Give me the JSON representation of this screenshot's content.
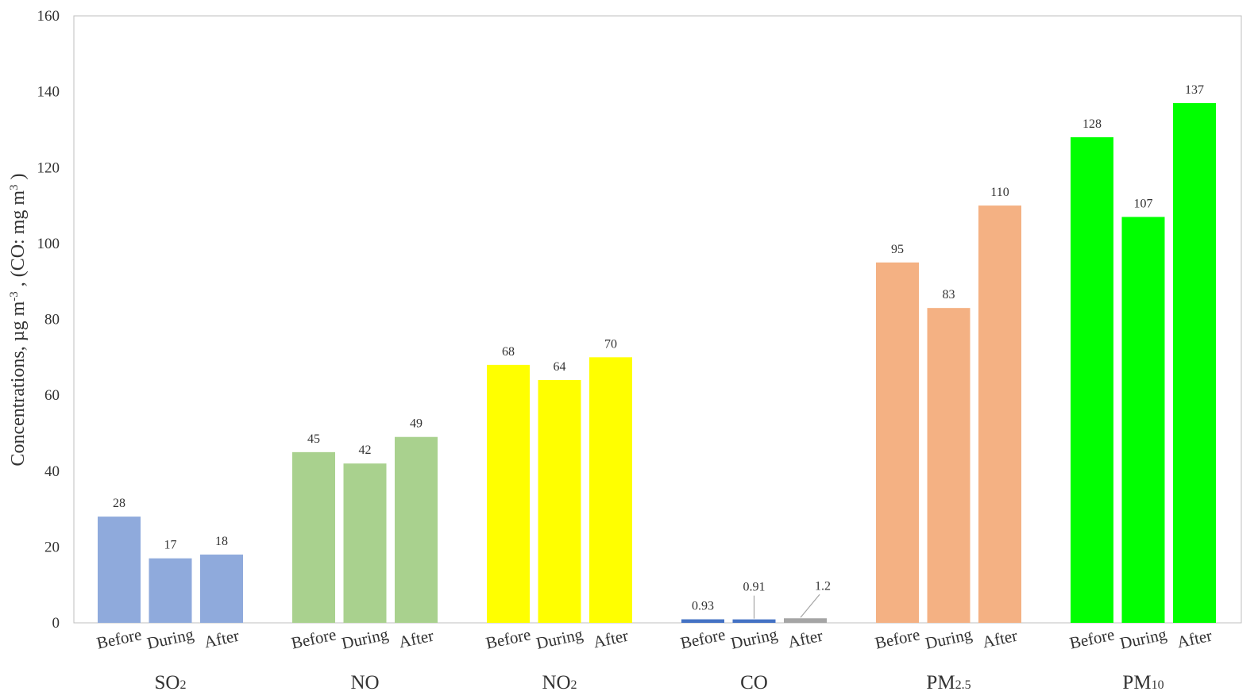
{
  "chart_data": {
    "type": "bar",
    "ylabel": {
      "parts": [
        {
          "text": "Concentrations,  µg m",
          "style": "normal"
        },
        {
          "text": "-3",
          "style": "sup"
        },
        {
          "text": " , (CO:  mg m",
          "style": "normal"
        },
        {
          "text": "3",
          "style": "sup"
        },
        {
          "text": " )",
          "style": "normal"
        }
      ]
    },
    "ylim": [
      0,
      160
    ],
    "yticks": [
      0,
      20,
      40,
      60,
      80,
      100,
      120,
      140,
      160
    ],
    "grid": false,
    "legend": "none",
    "groups": [
      {
        "name": [
          {
            "text": "SO",
            "style": "normal"
          },
          {
            "text": "2",
            "style": "sub"
          }
        ],
        "color": "#8FAADC",
        "bars": [
          {
            "category": "Before",
            "value": 28,
            "label": "28"
          },
          {
            "category": "During",
            "value": 17,
            "label": "17"
          },
          {
            "category": "After",
            "value": 18,
            "label": "18"
          }
        ]
      },
      {
        "name": [
          {
            "text": "NO",
            "style": "normal"
          }
        ],
        "color": "#A9D18E",
        "bars": [
          {
            "category": "Before",
            "value": 45,
            "label": "45"
          },
          {
            "category": "During",
            "value": 42,
            "label": "42"
          },
          {
            "category": "After",
            "value": 49,
            "label": "49"
          }
        ]
      },
      {
        "name": [
          {
            "text": "NO",
            "style": "normal"
          },
          {
            "text": "2",
            "style": "sub"
          }
        ],
        "color": "#FFFF00",
        "bars": [
          {
            "category": "Before",
            "value": 68,
            "label": "68"
          },
          {
            "category": "During",
            "value": 64,
            "label": "64"
          },
          {
            "category": "After",
            "value": 70,
            "label": "70"
          }
        ]
      },
      {
        "name": [
          {
            "text": "CO",
            "style": "normal"
          }
        ],
        "color": "#4472C4",
        "bars": [
          {
            "category": "Before",
            "value": 0.93,
            "label": "0.93"
          },
          {
            "category": "During",
            "value": 0.91,
            "label": "0.91",
            "leader": true
          },
          {
            "category": "After",
            "value": 1.2,
            "label": "1.2",
            "color": "#A5A5A5",
            "leader": true
          }
        ]
      },
      {
        "name": [
          {
            "text": "PM",
            "style": "normal"
          },
          {
            "text": "2.5",
            "style": "sub"
          }
        ],
        "color": "#F4B183",
        "bars": [
          {
            "category": "Before",
            "value": 95,
            "label": "95"
          },
          {
            "category": "During",
            "value": 83,
            "label": "83"
          },
          {
            "category": "After",
            "value": 110,
            "label": "110"
          }
        ]
      },
      {
        "name": [
          {
            "text": "PM",
            "style": "normal"
          },
          {
            "text": "10",
            "style": "sub"
          }
        ],
        "color": "#00FF00",
        "bars": [
          {
            "category": "Before",
            "value": 128,
            "label": "128"
          },
          {
            "category": "During",
            "value": 107,
            "label": "107"
          },
          {
            "category": "After",
            "value": 137,
            "label": "137"
          }
        ]
      }
    ]
  }
}
